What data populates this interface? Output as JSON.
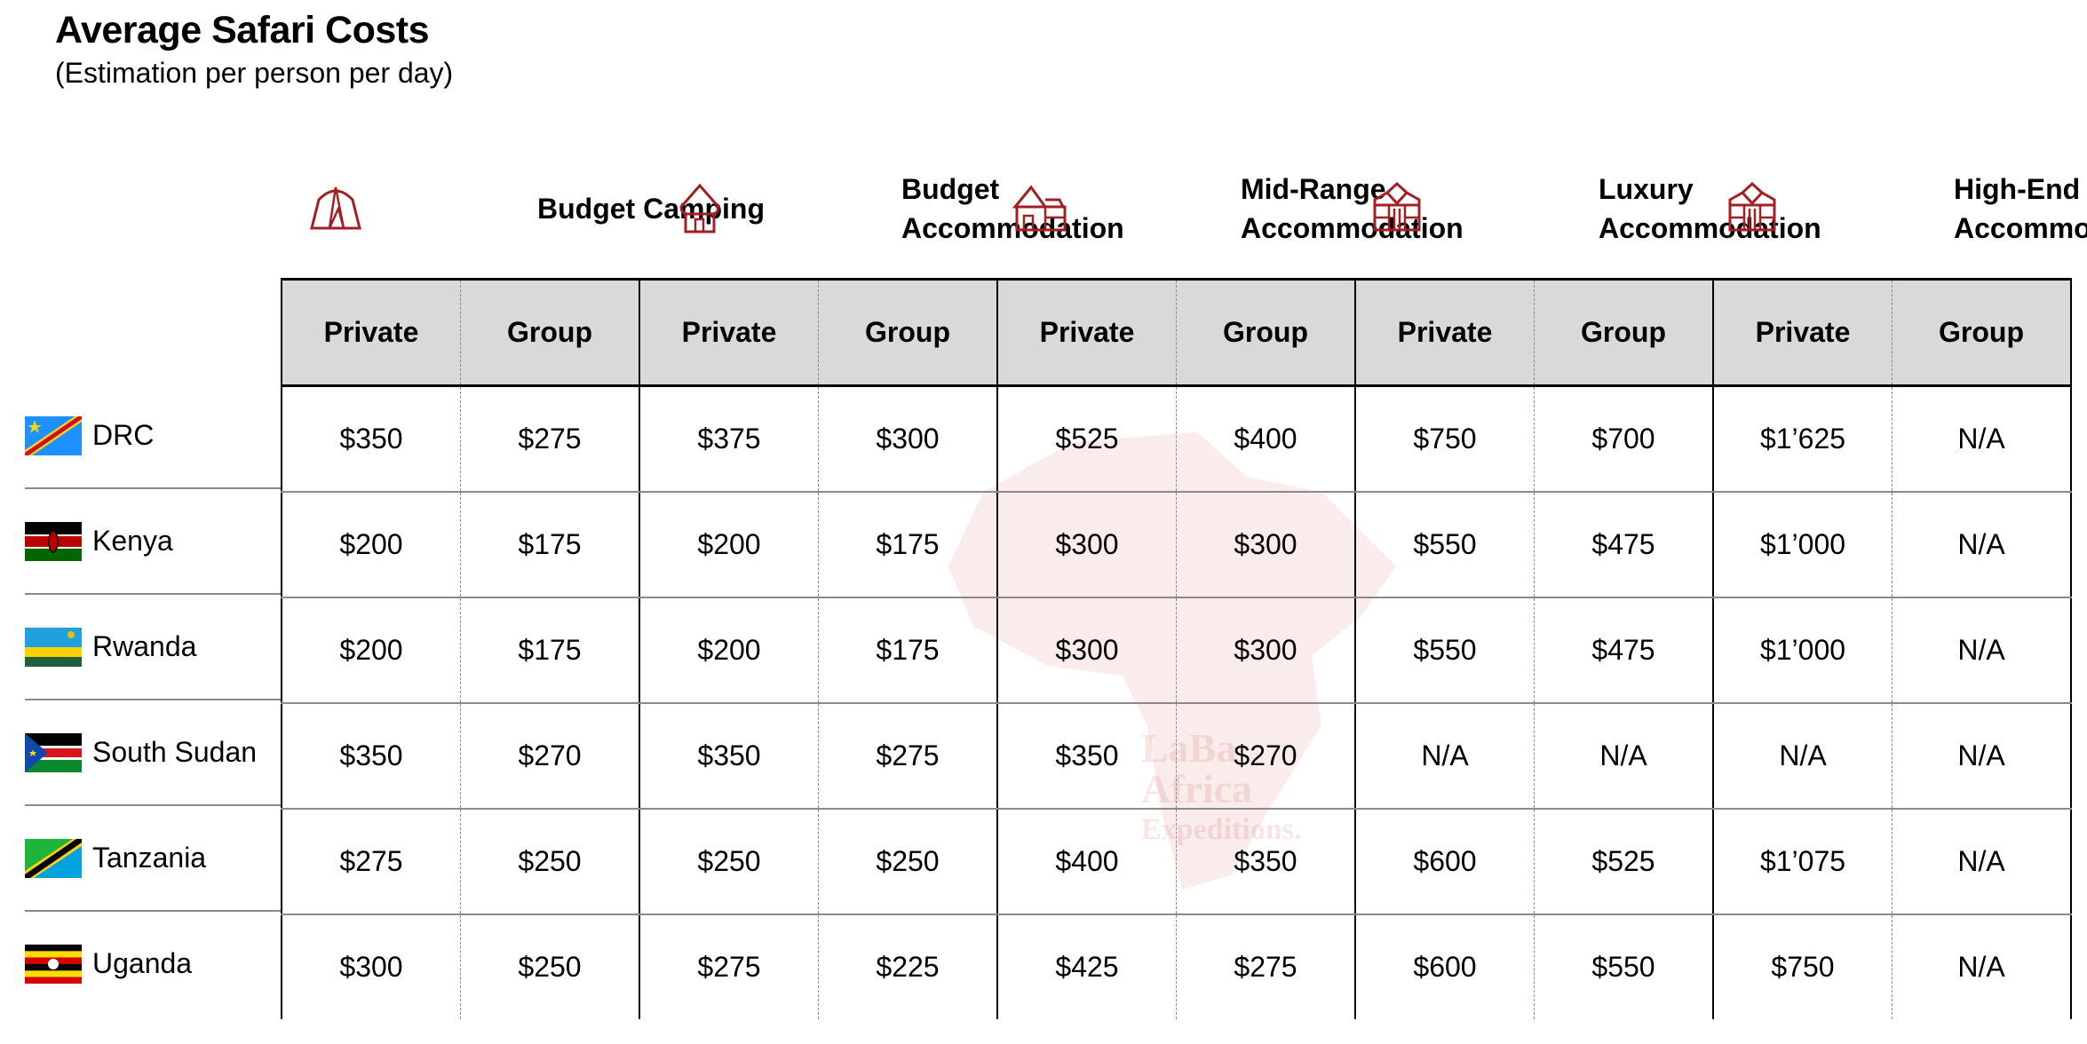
{
  "title": "Average Safari Costs",
  "subtitle": "(Estimation per person per day)",
  "accent_color": "#a31f24",
  "header_fill": "#d9d9d9",
  "categories": [
    {
      "label": "Budget Camping",
      "icon": "tent-icon"
    },
    {
      "label": "Budget Accommodation",
      "icon": "hut-icon"
    },
    {
      "label": "Mid-Range Accommodation",
      "icon": "house-icon"
    },
    {
      "label": "Luxury Accommodation",
      "icon": "lodge-icon"
    },
    {
      "label": "High-End Accommodation",
      "icon": "lodge-icon"
    }
  ],
  "subheaders": [
    "Private",
    "Group",
    "Private",
    "Group",
    "Private",
    "Group",
    "Private",
    "Group",
    "Private",
    "Group"
  ],
  "rows": [
    {
      "country": "DRC",
      "flag": "drc-flag-icon",
      "values": [
        "$350",
        "$275",
        "$375",
        "$300",
        "$525",
        "$400",
        "$750",
        "$700",
        "$1’625",
        "N/A"
      ]
    },
    {
      "country": "Kenya",
      "flag": "kenya-flag-icon",
      "values": [
        "$200",
        "$175",
        "$200",
        "$175",
        "$300",
        "$300",
        "$550",
        "$475",
        "$1’000",
        "N/A"
      ]
    },
    {
      "country": "Rwanda",
      "flag": "rwanda-flag-icon",
      "values": [
        "$200",
        "$175",
        "$200",
        "$175",
        "$300",
        "$300",
        "$550",
        "$475",
        "$1’000",
        "N/A"
      ]
    },
    {
      "country": "South Sudan",
      "flag": "south-sudan-flag-icon",
      "values": [
        "$350",
        "$270",
        "$350",
        "$275",
        "$350",
        "$270",
        "N/A",
        "N/A",
        "N/A",
        "N/A"
      ]
    },
    {
      "country": "Tanzania",
      "flag": "tanzania-flag-icon",
      "values": [
        "$275",
        "$250",
        "$250",
        "$250",
        "$400",
        "$350",
        "$600",
        "$525",
        "$1’075",
        "N/A"
      ]
    },
    {
      "country": "Uganda",
      "flag": "uganda-flag-icon",
      "values": [
        "$300",
        "$250",
        "$275",
        "$225",
        "$425",
        "$275",
        "$600",
        "$550",
        "$750",
        "N/A"
      ]
    }
  ],
  "watermark": {
    "lines": [
      "LaBa",
      "Africa",
      "Expeditions."
    ]
  }
}
